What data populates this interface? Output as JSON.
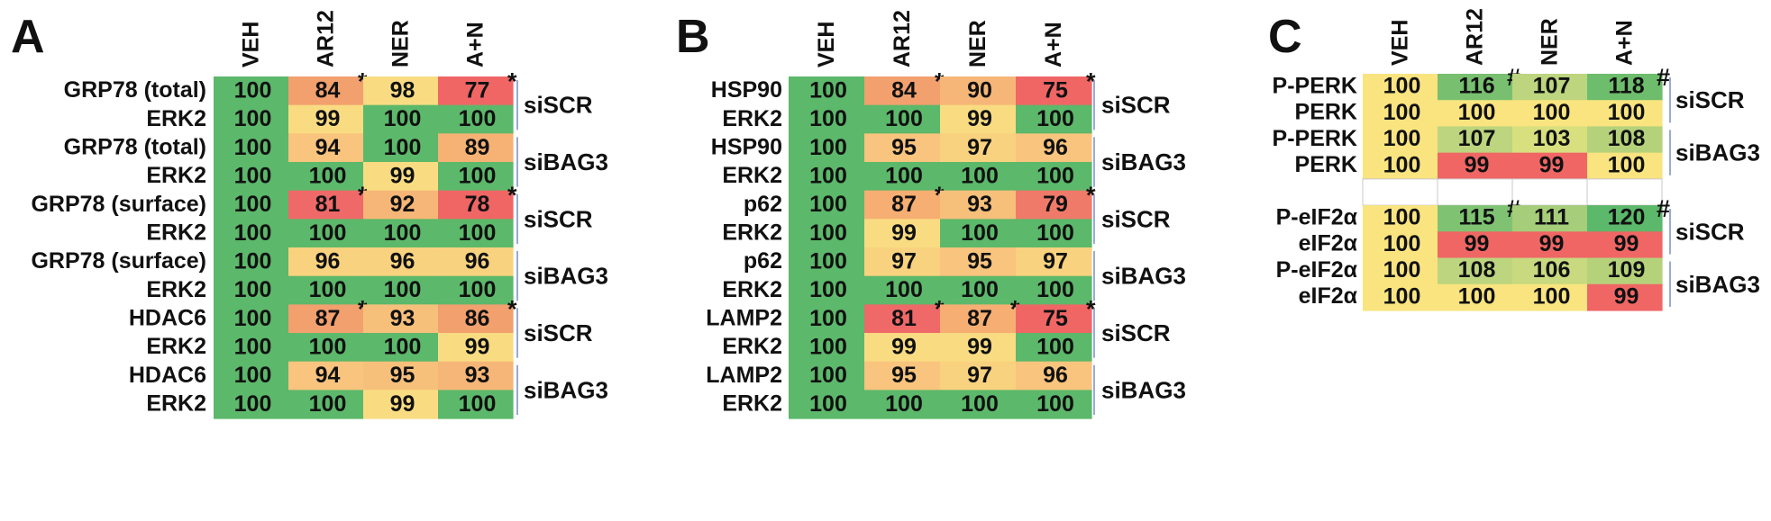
{
  "chart_data": [
    {
      "type": "heatmap",
      "panel_letter": "A",
      "columns": [
        "VEH",
        "AR12",
        "NER",
        "A+N"
      ],
      "rows": [
        {
          "label": "GRP78 (total)",
          "values": [
            100,
            84,
            98,
            77
          ],
          "markers": [
            "",
            "*",
            "",
            "*"
          ]
        },
        {
          "label": "ERK2",
          "values": [
            100,
            99,
            100,
            100
          ],
          "markers": [
            "",
            "",
            "",
            ""
          ]
        },
        {
          "label": "GRP78 (total)",
          "values": [
            100,
            94,
            100,
            89
          ],
          "markers": [
            "",
            "",
            "",
            ""
          ]
        },
        {
          "label": "ERK2",
          "values": [
            100,
            100,
            99,
            100
          ],
          "markers": [
            "",
            "",
            "",
            ""
          ]
        },
        {
          "label": "GRP78 (surface)",
          "values": [
            100,
            81,
            92,
            78
          ],
          "markers": [
            "",
            "*",
            "",
            "*"
          ]
        },
        {
          "label": "ERK2",
          "values": [
            100,
            100,
            100,
            100
          ],
          "markers": [
            "",
            "",
            "",
            ""
          ]
        },
        {
          "label": "GRP78 (surface)",
          "values": [
            100,
            96,
            96,
            96
          ],
          "markers": [
            "",
            "",
            "",
            ""
          ]
        },
        {
          "label": "ERK2",
          "values": [
            100,
            100,
            100,
            100
          ],
          "markers": [
            "",
            "",
            "",
            ""
          ]
        },
        {
          "label": "HDAC6",
          "values": [
            100,
            87,
            93,
            86
          ],
          "markers": [
            "",
            "*",
            "",
            "*"
          ]
        },
        {
          "label": "ERK2",
          "values": [
            100,
            100,
            100,
            99
          ],
          "markers": [
            "",
            "",
            "",
            ""
          ]
        },
        {
          "label": "HDAC6",
          "values": [
            100,
            94,
            95,
            93
          ],
          "markers": [
            "",
            "",
            "",
            ""
          ]
        },
        {
          "label": "ERK2",
          "values": [
            100,
            100,
            99,
            100
          ],
          "markers": [
            "",
            "",
            "",
            ""
          ]
        }
      ],
      "colors": [
        [
          "#5cb86a",
          "#f2a06e",
          "#f9dc82",
          "#ef6665"
        ],
        [
          "#5cb86a",
          "#f9dc82",
          "#5cb86a",
          "#5cb86a"
        ],
        [
          "#5cb86a",
          "#f9c47e",
          "#5cb86a",
          "#f6b274"
        ],
        [
          "#5cb86a",
          "#5cb86a",
          "#f9dc82",
          "#5cb86a"
        ],
        [
          "#5cb86a",
          "#ef6968",
          "#f6b677",
          "#ef6665"
        ],
        [
          "#5cb86a",
          "#5cb86a",
          "#5cb86a",
          "#5cb86a"
        ],
        [
          "#5cb86a",
          "#f9d27f",
          "#f9d27f",
          "#f9d27f"
        ],
        [
          "#5cb86a",
          "#5cb86a",
          "#5cb86a",
          "#5cb86a"
        ],
        [
          "#5cb86a",
          "#f2a06e",
          "#f6c07b",
          "#f2a06e"
        ],
        [
          "#5cb86a",
          "#5cb86a",
          "#5cb86a",
          "#f9dc82"
        ],
        [
          "#5cb86a",
          "#f9c47e",
          "#f6c07b",
          "#f6b677"
        ],
        [
          "#5cb86a",
          "#5cb86a",
          "#f9dc82",
          "#5cb86a"
        ]
      ],
      "groups": [
        "siSCR",
        "siBAG3",
        "siSCR",
        "siBAG3",
        "siSCR",
        "siBAG3"
      ]
    },
    {
      "type": "heatmap",
      "panel_letter": "B",
      "columns": [
        "VEH",
        "AR12",
        "NER",
        "A+N"
      ],
      "rows": [
        {
          "label": "HSP90",
          "values": [
            100,
            84,
            90,
            75
          ],
          "markers": [
            "",
            "*",
            "",
            "*"
          ]
        },
        {
          "label": "ERK2",
          "values": [
            100,
            100,
            99,
            100
          ],
          "markers": [
            "",
            "",
            "",
            ""
          ]
        },
        {
          "label": "HSP90",
          "values": [
            100,
            95,
            97,
            96
          ],
          "markers": [
            "",
            "",
            "",
            ""
          ]
        },
        {
          "label": "ERK2",
          "values": [
            100,
            100,
            100,
            100
          ],
          "markers": [
            "",
            "",
            "",
            ""
          ]
        },
        {
          "label": "p62",
          "values": [
            100,
            87,
            93,
            79
          ],
          "markers": [
            "",
            "*",
            "",
            "*"
          ]
        },
        {
          "label": "ERK2",
          "values": [
            100,
            99,
            100,
            100
          ],
          "markers": [
            "",
            "",
            "",
            ""
          ]
        },
        {
          "label": "p62",
          "values": [
            100,
            97,
            95,
            97
          ],
          "markers": [
            "",
            "",
            "",
            ""
          ]
        },
        {
          "label": "ERK2",
          "values": [
            100,
            100,
            100,
            100
          ],
          "markers": [
            "",
            "",
            "",
            ""
          ]
        },
        {
          "label": "LAMP2",
          "values": [
            100,
            81,
            87,
            75
          ],
          "markers": [
            "",
            "*",
            "*",
            "*"
          ]
        },
        {
          "label": "ERK2",
          "values": [
            100,
            99,
            99,
            100
          ],
          "markers": [
            "",
            "",
            "",
            ""
          ]
        },
        {
          "label": "LAMP2",
          "values": [
            100,
            95,
            97,
            96
          ],
          "markers": [
            "",
            "",
            "",
            ""
          ]
        },
        {
          "label": "ERK2",
          "values": [
            100,
            100,
            100,
            100
          ],
          "markers": [
            "",
            "",
            "",
            ""
          ]
        }
      ],
      "colors": [
        [
          "#5cb86a",
          "#f2a06e",
          "#f6b677",
          "#ef6665"
        ],
        [
          "#5cb86a",
          "#5cb86a",
          "#f9dc82",
          "#5cb86a"
        ],
        [
          "#5cb86a",
          "#f9c47e",
          "#f9d27f",
          "#f9c47e"
        ],
        [
          "#5cb86a",
          "#5cb86a",
          "#5cb86a",
          "#5cb86a"
        ],
        [
          "#5cb86a",
          "#f6ae72",
          "#f6c07b",
          "#ef7a69"
        ],
        [
          "#5cb86a",
          "#f9dc82",
          "#5cb86a",
          "#5cb86a"
        ],
        [
          "#5cb86a",
          "#f9d27f",
          "#f9c47e",
          "#f9d27f"
        ],
        [
          "#5cb86a",
          "#5cb86a",
          "#5cb86a",
          "#5cb86a"
        ],
        [
          "#5cb86a",
          "#ef6968",
          "#f6ae72",
          "#ef6665"
        ],
        [
          "#5cb86a",
          "#f9dc82",
          "#f9dc82",
          "#5cb86a"
        ],
        [
          "#5cb86a",
          "#f9c47e",
          "#f9d27f",
          "#f9c47e"
        ],
        [
          "#5cb86a",
          "#5cb86a",
          "#5cb86a",
          "#5cb86a"
        ]
      ],
      "groups": [
        "siSCR",
        "siBAG3",
        "siSCR",
        "siBAG3",
        "siSCR",
        "siBAG3"
      ]
    },
    {
      "type": "heatmap",
      "panel_letter": "C",
      "columns": [
        "VEH",
        "AR12",
        "NER",
        "A+N"
      ],
      "rows": [
        {
          "label": "P-PERK",
          "values": [
            100,
            116,
            107,
            118
          ],
          "markers": [
            "",
            "#",
            "",
            "#"
          ]
        },
        {
          "label": "PERK",
          "values": [
            100,
            100,
            100,
            100
          ],
          "markers": [
            "",
            "",
            "",
            ""
          ]
        },
        {
          "label": "P-PERK",
          "values": [
            100,
            107,
            103,
            108
          ],
          "markers": [
            "",
            "",
            "",
            ""
          ]
        },
        {
          "label": "PERK",
          "values": [
            100,
            99,
            99,
            100
          ],
          "markers": [
            "",
            "",
            "",
            ""
          ]
        },
        {
          "label": "",
          "values": [],
          "markers": []
        },
        {
          "label": "P-eIF2α",
          "values": [
            100,
            115,
            111,
            120
          ],
          "markers": [
            "",
            "#",
            "",
            "#"
          ]
        },
        {
          "label": "eIF2α",
          "values": [
            100,
            99,
            99,
            99
          ],
          "markers": [
            "",
            "",
            "",
            ""
          ]
        },
        {
          "label": "P-eIF2α",
          "values": [
            100,
            108,
            106,
            109
          ],
          "markers": [
            "",
            "",
            "",
            ""
          ]
        },
        {
          "label": "eIF2α",
          "values": [
            100,
            100,
            100,
            99
          ],
          "markers": [
            "",
            "",
            "",
            ""
          ]
        }
      ],
      "colors": [
        [
          "#f9e47f",
          "#78c070",
          "#bcd57e",
          "#6dbd6c"
        ],
        [
          "#f9e47f",
          "#f9e47f",
          "#f9e47f",
          "#f9e47f"
        ],
        [
          "#f9e47f",
          "#bcd57e",
          "#d8df7f",
          "#b5d27b"
        ],
        [
          "#f9e47f",
          "#ef6665",
          "#ef6665",
          "#f9e47f"
        ],
        [
          "#ffffff",
          "#ffffff",
          "#ffffff",
          "#ffffff"
        ],
        [
          "#f9e47f",
          "#7fc372",
          "#a6cd79",
          "#5cb86a"
        ],
        [
          "#f9e47f",
          "#ef6665",
          "#ef6665",
          "#ef6665"
        ],
        [
          "#f9e47f",
          "#bcd57e",
          "#c8d97f",
          "#b5d27b"
        ],
        [
          "#f9e47f",
          "#f9e47f",
          "#f9e47f",
          "#ef6665"
        ]
      ],
      "groups": [
        "siSCR",
        "siBAG3",
        "siSCR",
        "siBAG3"
      ]
    }
  ]
}
